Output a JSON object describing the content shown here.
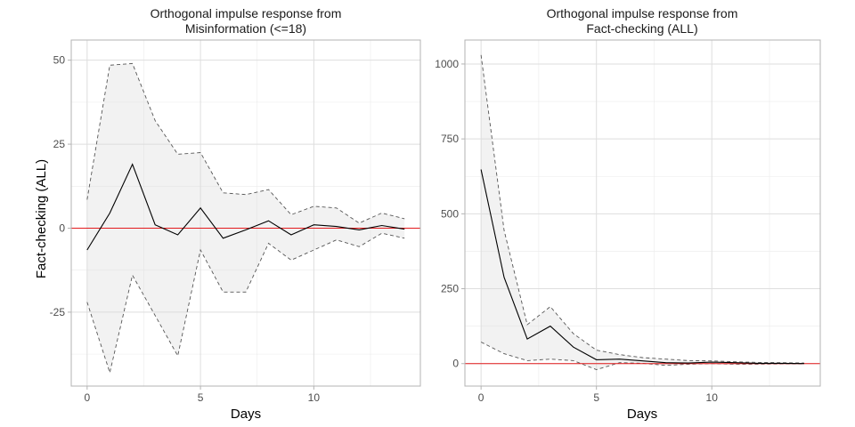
{
  "chart_data": [
    {
      "type": "line",
      "title_line1": "Orthogonal impulse response from",
      "title_line2": "Misinformation (<=18)",
      "xlabel": "Days",
      "ylabel": "Fact-checking (ALL)",
      "xlim": [
        -0.7,
        14.7
      ],
      "ylim": [
        -47,
        56
      ],
      "x_ticks": [
        0,
        5,
        10
      ],
      "x_tick_labels": [
        "0",
        "5",
        "10"
      ],
      "y_ticks": [
        -25,
        0,
        25,
        50
      ],
      "y_tick_labels": [
        "-25",
        "0",
        "25",
        "50"
      ],
      "grid": true,
      "zero_line": 0,
      "x": [
        0,
        1,
        2,
        3,
        4,
        5,
        6,
        7,
        8,
        9,
        10,
        11,
        12,
        13,
        14
      ],
      "series": [
        {
          "role": "response",
          "values": [
            -6.5,
            4.5,
            19,
            1,
            -2,
            6,
            -3,
            -0.5,
            2.2,
            -2,
            1,
            0.5,
            -0.5,
            0.8,
            -0.3
          ]
        },
        {
          "role": "upper",
          "values": [
            8.5,
            48.5,
            49,
            32,
            22,
            22.5,
            10.5,
            10,
            11.5,
            4,
            6.5,
            6,
            1.5,
            4.5,
            2.8
          ]
        },
        {
          "role": "lower",
          "values": [
            -22,
            -43,
            -14,
            -26,
            -38,
            -6.5,
            -19,
            -19,
            -4.5,
            -9.5,
            -6.5,
            -3.5,
            -5.5,
            -1.5,
            -3
          ]
        }
      ]
    },
    {
      "type": "line",
      "title_line1": "Orthogonal impulse response from",
      "title_line2": "Fact-checking (ALL)",
      "xlabel": "Days",
      "ylabel": "",
      "xlim": [
        -0.7,
        14.7
      ],
      "ylim": [
        -75,
        1080
      ],
      "x_ticks": [
        0,
        5,
        10
      ],
      "x_tick_labels": [
        "0",
        "5",
        "10"
      ],
      "y_ticks": [
        0,
        250,
        500,
        750,
        1000
      ],
      "y_tick_labels": [
        "0",
        "250",
        "500",
        "750",
        "1000"
      ],
      "grid": true,
      "zero_line": 0,
      "x": [
        0,
        1,
        2,
        3,
        4,
        5,
        6,
        7,
        8,
        9,
        10,
        11,
        12,
        13,
        14
      ],
      "series": [
        {
          "role": "response",
          "values": [
            648,
            288,
            82,
            125,
            55,
            13,
            15,
            9,
            3,
            2,
            5,
            3,
            1,
            1,
            0
          ]
        },
        {
          "role": "upper",
          "values": [
            1030,
            445,
            130,
            190,
            100,
            45,
            30,
            20,
            15,
            10,
            9,
            6,
            4,
            3,
            2
          ]
        },
        {
          "role": "lower",
          "values": [
            72,
            33,
            10,
            15,
            10,
            -20,
            3,
            1,
            -6,
            -2,
            0,
            -2,
            -2,
            -1,
            -1
          ]
        }
      ]
    }
  ]
}
